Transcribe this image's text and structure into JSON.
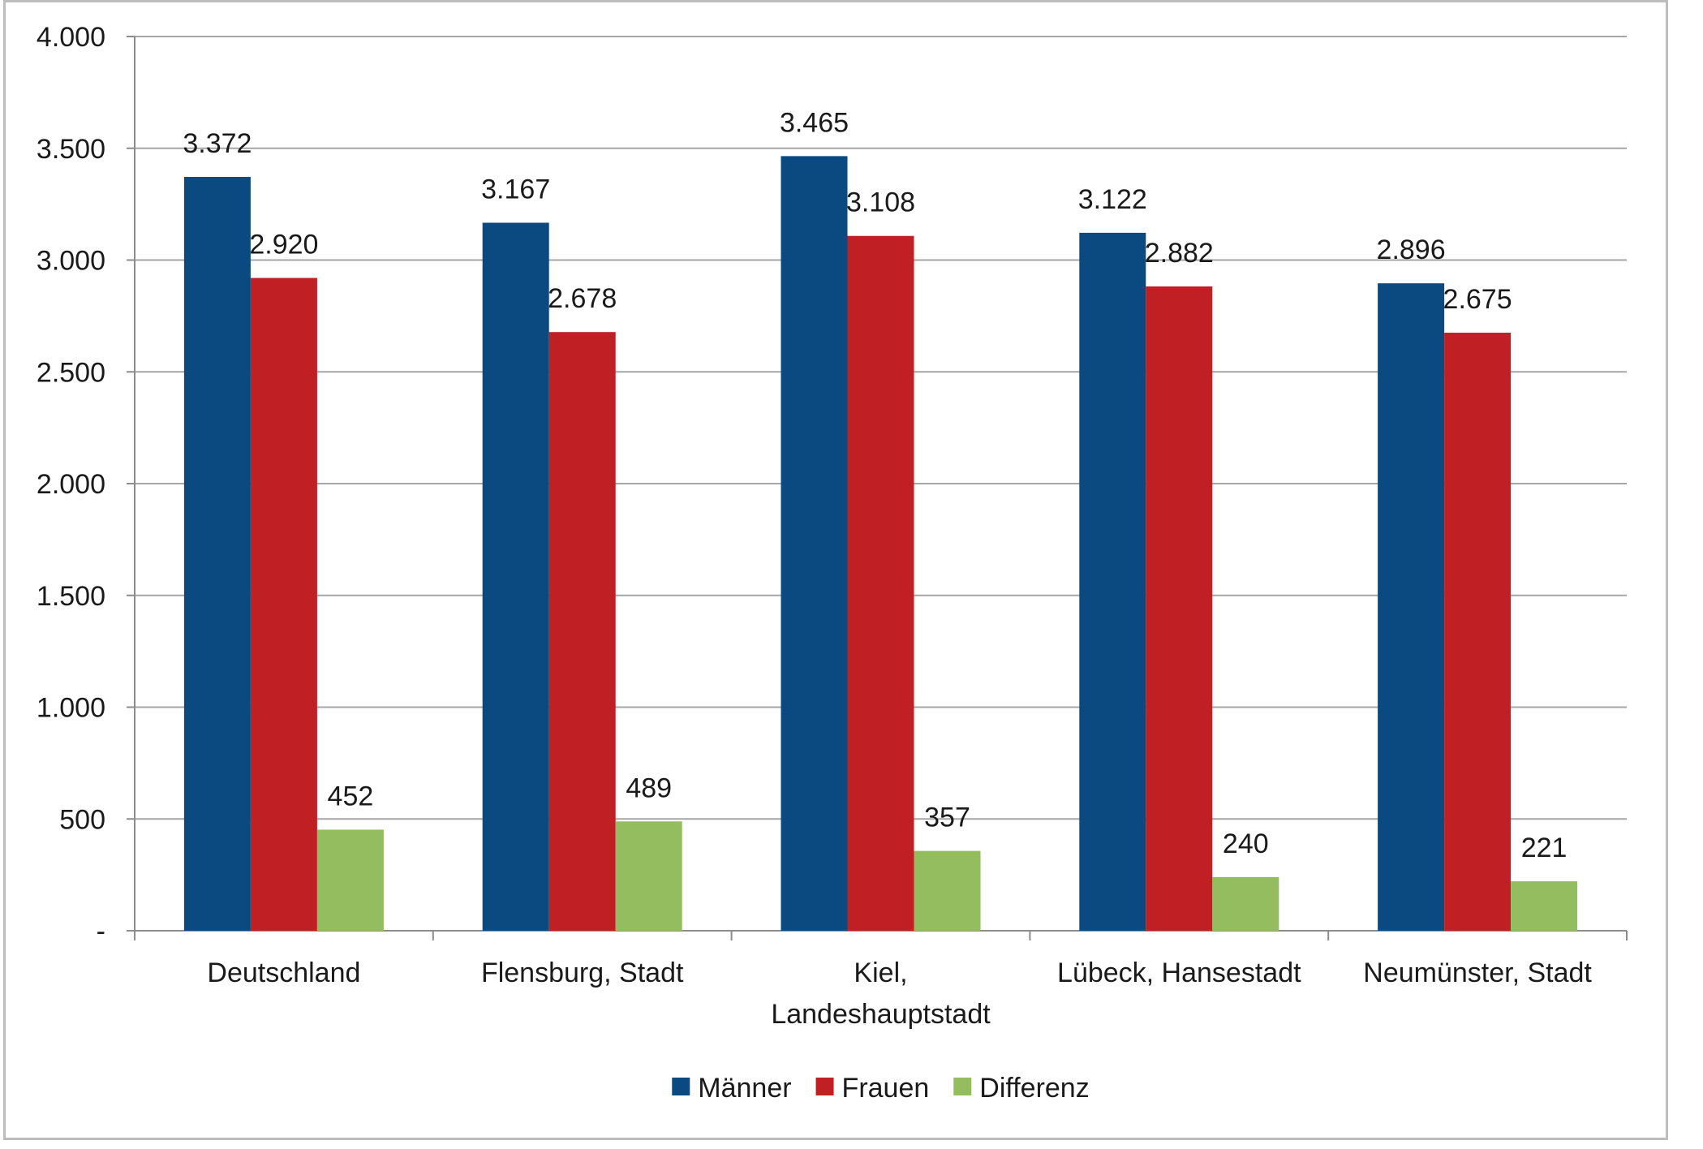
{
  "chart_data": {
    "type": "bar",
    "title": "",
    "xlabel": "",
    "ylabel": "",
    "ylim": [
      0,
      4000
    ],
    "yticks": [
      0,
      500,
      1000,
      1500,
      2000,
      2500,
      3000,
      3500,
      4000
    ],
    "ytick_labels": [
      "-",
      "500",
      "1.000",
      "1.500",
      "2.000",
      "2.500",
      "3.000",
      "3.500",
      "4.000"
    ],
    "grid": true,
    "legend_position": "bottom",
    "categories": [
      [
        "Deutschland"
      ],
      [
        "Flensburg, Stadt"
      ],
      [
        "Kiel,",
        "Landeshauptstadt"
      ],
      [
        "Lübeck, Hansestadt"
      ],
      [
        "Neumünster, Stadt"
      ]
    ],
    "series": [
      {
        "name": "Männer",
        "color": "#0b4a80",
        "values": [
          3372,
          3167,
          3465,
          3122,
          2896
        ],
        "labels": [
          "3.372",
          "3.167",
          "3.465",
          "3.122",
          "2.896"
        ]
      },
      {
        "name": "Frauen",
        "color": "#c01f24",
        "values": [
          2920,
          2678,
          3108,
          2882,
          2675
        ],
        "labels": [
          "2.920",
          "2.678",
          "3.108",
          "2.882",
          "2.675"
        ]
      },
      {
        "name": "Differenz",
        "color": "#93bd5e",
        "values": [
          452,
          489,
          357,
          240,
          221
        ],
        "labels": [
          "452",
          "489",
          "357",
          "240",
          "221"
        ]
      }
    ]
  }
}
